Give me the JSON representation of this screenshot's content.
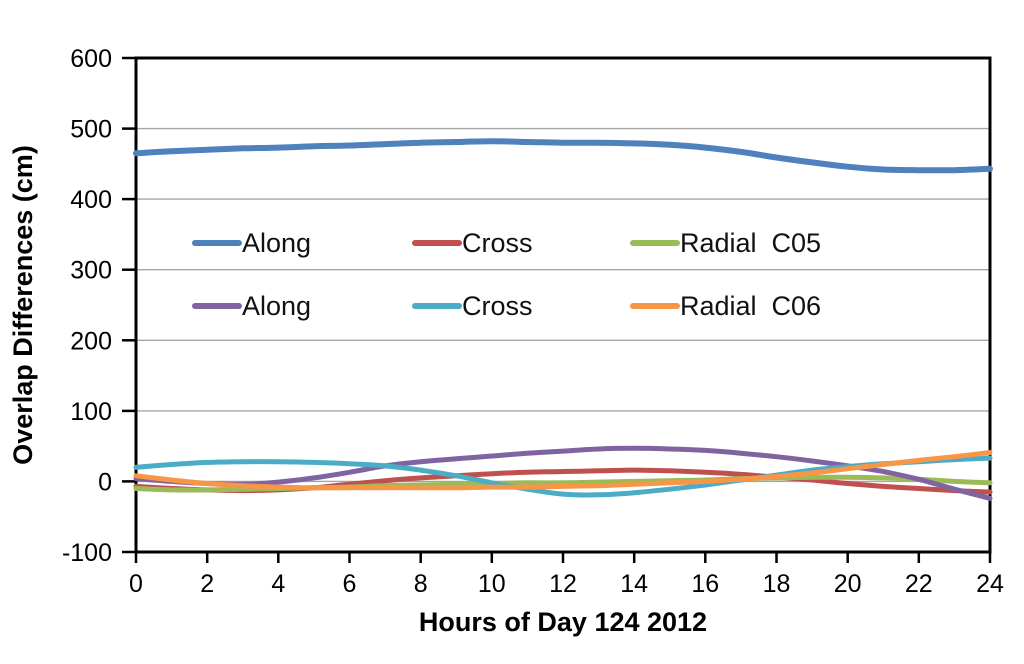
{
  "figure": {
    "background": "#FFFFFF"
  },
  "chart_data": {
    "type": "line",
    "title": "",
    "xlabel": "Hours of Day 124 2012",
    "ylabel": "Overlap Differences (cm)",
    "xlim": [
      0,
      24
    ],
    "ylim": [
      -100,
      600
    ],
    "xticks": [
      0,
      2,
      4,
      6,
      8,
      10,
      12,
      14,
      16,
      18,
      20,
      22,
      24
    ],
    "yticks": [
      600,
      500,
      400,
      300,
      200,
      100,
      0,
      -100
    ],
    "grid": "horizontal",
    "grid_color": "#A6A6A6",
    "axis_color": "#000000",
    "legend_position": "inside-plot, two rows, upper-left of center",
    "x_hours": [
      0,
      1,
      2,
      3,
      4,
      5,
      6,
      7,
      8,
      9,
      10,
      11,
      12,
      13,
      14,
      15,
      16,
      17,
      18,
      19,
      20,
      21,
      22,
      23,
      24
    ],
    "series": [
      {
        "key": "along-c05",
        "name": "Along",
        "group": "C05",
        "color": "#4F81BD",
        "width": 6,
        "values": [
          465,
          468,
          470,
          472,
          473,
          475,
          476,
          478,
          480,
          481,
          482,
          481,
          480,
          480,
          479,
          477,
          473,
          467,
          459,
          452,
          446,
          442,
          441,
          441,
          443
        ]
      },
      {
        "key": "cross-c05",
        "name": "Cross",
        "group": "C05",
        "color": "#C0504D",
        "width": 5,
        "values": [
          -7,
          -10,
          -12,
          -13,
          -12,
          -9,
          -4,
          1,
          5,
          8,
          11,
          13,
          14,
          15,
          16,
          15,
          13,
          10,
          6,
          2,
          -3,
          -7,
          -10,
          -13,
          -15
        ]
      },
      {
        "key": "radial-c05",
        "name": "Radial  C05",
        "group": "C05",
        "color": "#9BBB59",
        "width": 5,
        "values": [
          -10,
          -12,
          -12,
          -11,
          -10,
          -9,
          -8,
          -6,
          -5,
          -4,
          -3,
          -2,
          -2,
          -1,
          0,
          1,
          2,
          4,
          5,
          6,
          6,
          5,
          3,
          0,
          -2
        ]
      },
      {
        "key": "along-c06",
        "name": "Along",
        "group": "C06",
        "color": "#8064A2",
        "width": 5,
        "values": [
          4,
          0,
          -3,
          -4,
          -1,
          5,
          13,
          22,
          28,
          32,
          36,
          40,
          43,
          46,
          47,
          46,
          44,
          40,
          35,
          29,
          22,
          14,
          3,
          -11,
          -24
        ]
      },
      {
        "key": "cross-c06",
        "name": "Cross",
        "group": "C06",
        "color": "#4BACC6",
        "width": 5,
        "values": [
          20,
          24,
          27,
          28,
          28,
          27,
          25,
          22,
          16,
          8,
          -2,
          -11,
          -18,
          -19,
          -16,
          -11,
          -5,
          2,
          9,
          16,
          21,
          25,
          28,
          31,
          33
        ]
      },
      {
        "key": "radial-c06",
        "name": "Radial  C06",
        "group": "C06",
        "color": "#F79646",
        "width": 5,
        "values": [
          8,
          2,
          -3,
          -6,
          -8,
          -9,
          -9,
          -9,
          -9,
          -9,
          -8,
          -8,
          -7,
          -6,
          -4,
          -2,
          0,
          3,
          7,
          12,
          18,
          24,
          30,
          35,
          41
        ]
      }
    ],
    "legend_rows": [
      [
        0,
        1,
        2
      ],
      [
        3,
        4,
        5
      ]
    ]
  }
}
